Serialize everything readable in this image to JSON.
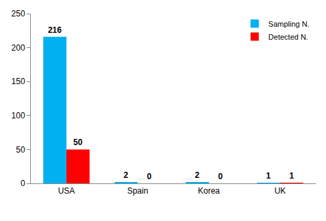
{
  "chart_data": {
    "type": "bar",
    "categories": [
      "USA",
      "Spain",
      "Korea",
      "UK"
    ],
    "series": [
      {
        "name": "Sampling N.",
        "color": "#00b0f0",
        "values": [
          216,
          2,
          2,
          1
        ]
      },
      {
        "name": "Detected N.",
        "color": "#ff0000",
        "values": [
          50,
          0,
          0,
          1
        ]
      }
    ],
    "ylim": [
      0,
      250
    ],
    "yticks": [
      0,
      50,
      100,
      150,
      200,
      250
    ],
    "grid": false,
    "legend": "top right",
    "data_labels": true
  }
}
